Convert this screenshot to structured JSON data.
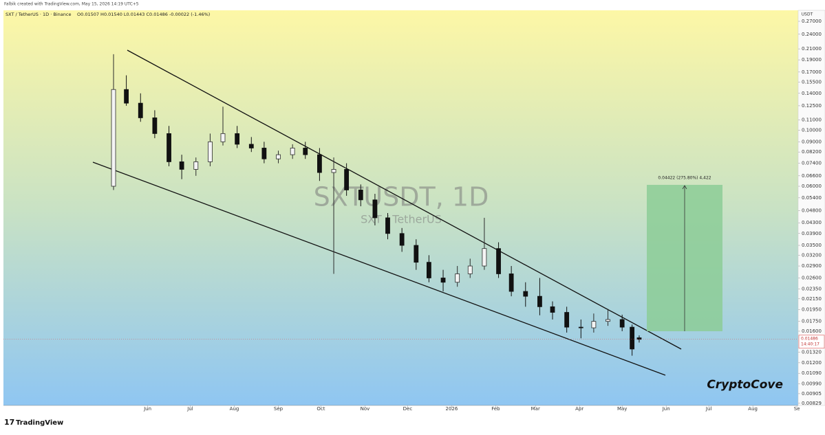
{
  "header": {
    "credit": "Falbik created with TradingView.com, May 15, 2026 14:19 UTC+5",
    "symbol_line": "SXT / TetherUS · 1D · Binance",
    "ohlc_line": "O0.01507 H0.01540 L0.01443 C0.01486 -0.00022 (-1.46%)"
  },
  "footer": {
    "brand": "TradingView"
  },
  "chart_data": {
    "type": "candlestick",
    "watermark": "SXTUSDT, 1D",
    "watermark_sub": "SXT / TetherUS",
    "signature": "CryptoCove",
    "measure_label": "0.04422 (275.80%) 4,422",
    "y_axis_title": "USDT",
    "last_price": {
      "value": 0.01486,
      "label": "0.01486"
    },
    "countdown": "14:40:17",
    "log_scale": true,
    "colors": {
      "up": "#2b2b2b",
      "down": "#111111"
    },
    "xlim": [
      -101.5,
      457.9
    ],
    "xticks": [
      {
        "value": 0,
        "label": "Jun"
      },
      {
        "value": 30,
        "label": "Jul"
      },
      {
        "value": 61,
        "label": "Aug"
      },
      {
        "value": 92,
        "label": "Sep"
      },
      {
        "value": 122,
        "label": "Oct"
      },
      {
        "value": 153,
        "label": "Nov"
      },
      {
        "value": 183,
        "label": "Dec"
      },
      {
        "value": 214,
        "label": "2026"
      },
      {
        "value": 245,
        "label": "Feb"
      },
      {
        "value": 273,
        "label": "Mar"
      },
      {
        "value": 304,
        "label": "Apr"
      },
      {
        "value": 334,
        "label": "May"
      },
      {
        "value": 365,
        "label": "Jun"
      },
      {
        "value": 395,
        "label": "Jul"
      },
      {
        "value": 426,
        "label": "Aug"
      },
      {
        "value": 457,
        "label": "Se"
      }
    ],
    "ylim": [
      0.00813,
      0.2985
    ],
    "yticks": [
      {
        "value": 0.27,
        "label": "0.27000"
      },
      {
        "value": 0.24,
        "label": "0.24000"
      },
      {
        "value": 0.21,
        "label": "0.21000"
      },
      {
        "value": 0.19,
        "label": "0.19000"
      },
      {
        "value": 0.17,
        "label": "0.17000"
      },
      {
        "value": 0.155,
        "label": "0.15500"
      },
      {
        "value": 0.14,
        "label": "0.14000"
      },
      {
        "value": 0.125,
        "label": "0.12500"
      },
      {
        "value": 0.11,
        "label": "0.11000"
      },
      {
        "value": 0.1,
        "label": "0.10000"
      },
      {
        "value": 0.09,
        "label": "0.09000"
      },
      {
        "value": 0.082,
        "label": "0.08200"
      },
      {
        "value": 0.074,
        "label": "0.07400"
      },
      {
        "value": 0.066,
        "label": "0.06600"
      },
      {
        "value": 0.06,
        "label": "0.06000"
      },
      {
        "value": 0.054,
        "label": "0.05400"
      },
      {
        "value": 0.048,
        "label": "0.04800"
      },
      {
        "value": 0.043,
        "label": "0.04300"
      },
      {
        "value": 0.039,
        "label": "0.03900"
      },
      {
        "value": 0.035,
        "label": "0.03500"
      },
      {
        "value": 0.032,
        "label": "0.03200"
      },
      {
        "value": 0.029,
        "label": "0.02900"
      },
      {
        "value": 0.026,
        "label": "0.02600"
      },
      {
        "value": 0.0235,
        "label": "0.02350"
      },
      {
        "value": 0.0215,
        "label": "0.02150"
      },
      {
        "value": 0.0195,
        "label": "0.01950"
      },
      {
        "value": 0.0175,
        "label": "0.01750"
      },
      {
        "value": 0.016,
        "label": "0.01600"
      },
      {
        "value": 0.0132,
        "label": "0.01320"
      },
      {
        "value": 0.012,
        "label": "0.01200"
      },
      {
        "value": 0.0109,
        "label": "0.01090"
      },
      {
        "value": 0.0099,
        "label": "0.00990"
      },
      {
        "value": 0.00905,
        "label": "0.00905"
      },
      {
        "value": 0.00829,
        "label": "0.00829"
      }
    ],
    "x": [
      -24,
      -15,
      -5,
      5,
      15,
      24,
      34,
      44,
      53,
      63,
      73,
      82,
      92,
      102,
      111,
      121,
      131,
      140,
      150,
      160,
      169,
      179,
      189,
      198,
      208,
      218,
      227,
      237,
      247,
      256,
      266,
      276,
      285,
      295,
      305,
      314,
      324,
      334,
      341,
      346
    ],
    "open": [
      0.06,
      0.145,
      0.128,
      0.112,
      0.097,
      0.075,
      0.07,
      0.075,
      0.09,
      0.097,
      0.088,
      0.085,
      0.077,
      0.08,
      0.085,
      0.08,
      0.068,
      0.07,
      0.058,
      0.053,
      0.045,
      0.039,
      0.035,
      0.03,
      0.026,
      0.025,
      0.027,
      0.029,
      0.034,
      0.027,
      0.023,
      0.022,
      0.02,
      0.019,
      0.0166,
      0.0165,
      0.0175,
      0.0178,
      0.0166,
      0.01507
    ],
    "high": [
      0.2,
      0.165,
      0.14,
      0.12,
      0.104,
      0.08,
      0.078,
      0.097,
      0.124,
      0.104,
      0.094,
      0.09,
      0.083,
      0.088,
      0.09,
      0.085,
      0.078,
      0.074,
      0.061,
      0.056,
      0.047,
      0.041,
      0.037,
      0.032,
      0.028,
      0.029,
      0.031,
      0.045,
      0.036,
      0.029,
      0.025,
      0.026,
      0.021,
      0.02,
      0.0178,
      0.0188,
      0.0196,
      0.0186,
      0.017,
      0.0154
    ],
    "low": [
      0.058,
      0.125,
      0.108,
      0.093,
      0.072,
      0.064,
      0.066,
      0.072,
      0.087,
      0.085,
      0.082,
      0.074,
      0.074,
      0.077,
      0.077,
      0.063,
      0.027,
      0.055,
      0.05,
      0.042,
      0.037,
      0.033,
      0.028,
      0.025,
      0.023,
      0.024,
      0.026,
      0.028,
      0.026,
      0.022,
      0.02,
      0.0185,
      0.0178,
      0.0158,
      0.015,
      0.0158,
      0.0168,
      0.016,
      0.0128,
      0.01443
    ],
    "close": [
      0.145,
      0.128,
      0.112,
      0.097,
      0.075,
      0.07,
      0.075,
      0.09,
      0.097,
      0.088,
      0.085,
      0.077,
      0.08,
      0.085,
      0.08,
      0.068,
      0.07,
      0.058,
      0.053,
      0.045,
      0.039,
      0.035,
      0.03,
      0.026,
      0.025,
      0.027,
      0.029,
      0.034,
      0.027,
      0.023,
      0.022,
      0.02,
      0.019,
      0.0166,
      0.0165,
      0.0175,
      0.0178,
      0.0166,
      0.0136,
      0.01486
    ]
  }
}
